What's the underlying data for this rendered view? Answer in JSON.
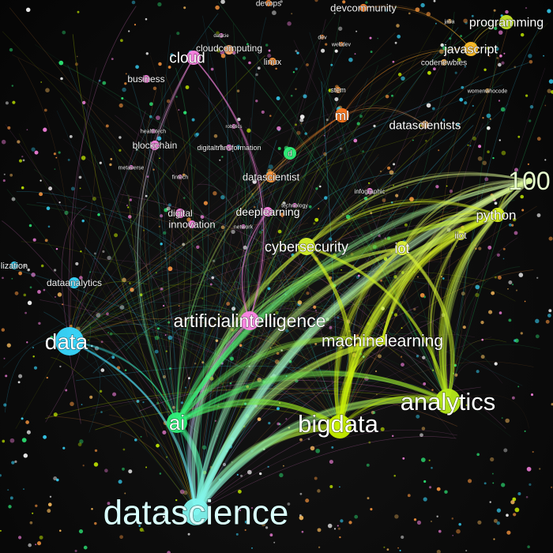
{
  "graph": {
    "nodes": [
      {
        "label": "datascience",
        "color": "#7ff6ef",
        "weight": 100
      },
      {
        "label": "ai",
        "color": "#2ff07a",
        "weight": 48
      },
      {
        "label": "bigdata",
        "color": "#c8f000",
        "weight": 55
      },
      {
        "label": "analytics",
        "color": "#b7ea1a",
        "weight": 52
      },
      {
        "label": "data",
        "color": "#39d9ff",
        "weight": 42
      },
      {
        "label": "artificialintelligence",
        "color": "#ff86e6",
        "weight": 32
      },
      {
        "label": "machinelearning",
        "color": "#d5f01a",
        "weight": 30
      },
      {
        "label": "cybersecurity",
        "color": "#d6f22a",
        "weight": 28
      },
      {
        "label": "iot",
        "color": "#ddf23a",
        "weight": 24
      },
      {
        "label": "python",
        "color": "#d6f020",
        "weight": 26
      },
      {
        "label": "100",
        "color": "#d8f5a0",
        "weight": 36
      },
      {
        "label": "programming",
        "color": "#c6e82a",
        "weight": 20
      },
      {
        "label": "javascript",
        "color": "#ffbf2a",
        "weight": 22
      },
      {
        "label": "ml",
        "color": "#ff7a20",
        "weight": 20
      },
      {
        "label": "datascientists",
        "color": "#e3b07a",
        "weight": 18
      },
      {
        "label": "cloud",
        "color": "#ff86e6",
        "weight": 20
      },
      {
        "label": "cloudcomputing",
        "color": "#ffb070",
        "weight": 14
      },
      {
        "label": "linux",
        "color": "#ff9a40",
        "weight": 12
      },
      {
        "label": "business",
        "color": "#ff86e6",
        "weight": 12
      },
      {
        "label": "blockchain",
        "color": "#ff86e6",
        "weight": 13
      },
      {
        "label": "digitaltransformation",
        "color": "#ff86e6",
        "weight": 10
      },
      {
        "label": "datascientist",
        "color": "#ff9a40",
        "weight": 14
      },
      {
        "label": "deeplearning",
        "color": "#ff86e6",
        "weight": 16
      },
      {
        "label": "digital",
        "color": "#ff86e6",
        "weight": 12
      },
      {
        "label": "innovation",
        "color": "#ff86e6",
        "weight": 14
      },
      {
        "label": "dataanalytics",
        "color": "#39d9ff",
        "weight": 12
      },
      {
        "label": "devcommunity",
        "color": "#ff8a30",
        "weight": 16
      },
      {
        "label": "devops",
        "color": "#ff8a30",
        "weight": 11
      },
      {
        "label": "codenewbies",
        "color": "#ffc060",
        "weight": 10
      },
      {
        "label": "iiot",
        "color": "#e0f040",
        "weight": 11
      },
      {
        "label": "stem",
        "color": "#ff9a40",
        "weight": 10
      },
      {
        "label": "infographic",
        "color": "#ff86e6",
        "weight": 9
      },
      {
        "label": "technology",
        "color": "#ff86e6",
        "weight": 8
      },
      {
        "label": "metaverse",
        "color": "#ff86e6",
        "weight": 8
      },
      {
        "label": "fintech",
        "color": "#ff86e6",
        "weight": 8
      },
      {
        "label": "healthtech",
        "color": "#ff86e6",
        "weight": 7
      },
      {
        "label": "robotics",
        "color": "#ff86e6",
        "weight": 7
      },
      {
        "label": "lization",
        "color": "#39d9ff",
        "weight": 9
      },
      {
        "label": "webdev",
        "color": "#ff8a30",
        "weight": 7
      },
      {
        "label": "dev",
        "color": "#ff8a30",
        "weight": 7
      },
      {
        "label": "java",
        "color": "#ffc060",
        "weight": 7
      },
      {
        "label": "womenwhocode",
        "color": "#ffc060",
        "weight": 7
      },
      {
        "label": "network",
        "color": "#ff86e6",
        "weight": 7
      },
      {
        "label": "d",
        "color": "#2ff07a",
        "weight": 10
      },
      {
        "label": "datacie",
        "color": "#ff86e6",
        "weight": 6
      }
    ],
    "edges": [
      {
        "source": "datascience",
        "target": "bigdata",
        "weight": 10
      },
      {
        "source": "datascience",
        "target": "analytics",
        "weight": 9
      },
      {
        "source": "datascience",
        "target": "python",
        "weight": 9
      },
      {
        "source": "datascience",
        "target": "ai",
        "weight": 8
      },
      {
        "source": "datascience",
        "target": "machinelearning",
        "weight": 8
      },
      {
        "source": "datascience",
        "target": "iot",
        "weight": 6
      },
      {
        "source": "datascience",
        "target": "100",
        "weight": 7
      },
      {
        "source": "datascience",
        "target": "cybersecurity",
        "weight": 5
      },
      {
        "source": "datascience",
        "target": "artificialintelligence",
        "weight": 4
      },
      {
        "source": "datascience",
        "target": "data",
        "weight": 3
      },
      {
        "source": "ai",
        "target": "bigdata",
        "weight": 7
      },
      {
        "source": "ai",
        "target": "analytics",
        "weight": 6
      },
      {
        "source": "ai",
        "target": "python",
        "weight": 6
      },
      {
        "source": "ai",
        "target": "100",
        "weight": 5
      },
      {
        "source": "ai",
        "target": "machinelearning",
        "weight": 5
      },
      {
        "source": "ai",
        "target": "iot",
        "weight": 4
      },
      {
        "source": "ai",
        "target": "cloud",
        "weight": 2
      },
      {
        "source": "ai",
        "target": "ml",
        "weight": 2
      },
      {
        "source": "bigdata",
        "target": "python",
        "weight": 6
      },
      {
        "source": "bigdata",
        "target": "100",
        "weight": 6
      },
      {
        "source": "bigdata",
        "target": "iot",
        "weight": 5
      },
      {
        "source": "bigdata",
        "target": "cybersecurity",
        "weight": 5
      },
      {
        "source": "bigdata",
        "target": "machinelearning",
        "weight": 4
      },
      {
        "source": "bigdata",
        "target": "iiot",
        "weight": 3
      },
      {
        "source": "bigdata",
        "target": "analytics",
        "weight": 3
      },
      {
        "source": "analytics",
        "target": "python",
        "weight": 5
      },
      {
        "source": "analytics",
        "target": "100",
        "weight": 5
      },
      {
        "source": "analytics",
        "target": "iot",
        "weight": 5
      },
      {
        "source": "analytics",
        "target": "cybersecurity",
        "weight": 4
      },
      {
        "source": "analytics",
        "target": "iiot",
        "weight": 3
      },
      {
        "source": "machinelearning",
        "target": "python",
        "weight": 4
      },
      {
        "source": "machinelearning",
        "target": "100",
        "weight": 4
      },
      {
        "source": "cybersecurity",
        "target": "python",
        "weight": 3
      },
      {
        "source": "cybersecurity",
        "target": "100",
        "weight": 3
      },
      {
        "source": "iot",
        "target": "python",
        "weight": 3
      },
      {
        "source": "iot",
        "target": "100",
        "weight": 3
      },
      {
        "source": "python",
        "target": "100",
        "weight": 3
      },
      {
        "source": "data",
        "target": "ai",
        "weight": 2
      },
      {
        "source": "artificialintelligence",
        "target": "cloud",
        "weight": 2
      },
      {
        "source": "artificialintelligence",
        "target": "deeplearning",
        "weight": 2
      },
      {
        "source": "ml",
        "target": "javascript",
        "weight": 1
      },
      {
        "source": "programming",
        "target": "javascript",
        "weight": 1
      },
      {
        "source": "datascientists",
        "target": "ml",
        "weight": 1
      },
      {
        "source": "devcommunity",
        "target": "javascript",
        "weight": 1
      }
    ]
  }
}
